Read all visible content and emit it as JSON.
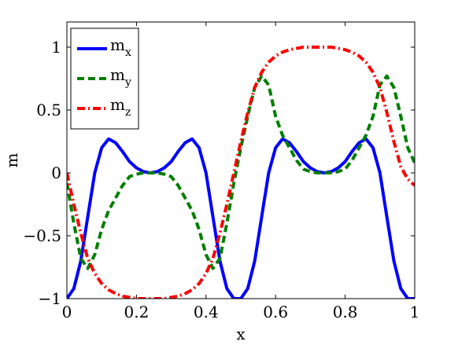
{
  "chart_data": {
    "type": "line",
    "title": "",
    "xlabel": "x",
    "ylabel": "m",
    "xlim": [
      0,
      1
    ],
    "ylim": [
      -1,
      1.2
    ],
    "xticks": [
      0,
      0.2,
      0.4,
      0.6,
      0.8,
      1
    ],
    "xtick_labels": [
      "0",
      "0.2",
      "0.4",
      "0.6",
      "0.8",
      "1"
    ],
    "yticks": [
      -1,
      -0.5,
      0,
      0.5,
      1
    ],
    "ytick_labels": [
      "−1",
      "−0.5",
      "0",
      "0.5",
      "1"
    ],
    "grid": false,
    "legend_position": "top-left",
    "x": [
      0,
      0.02,
      0.04,
      0.06,
      0.08,
      0.1,
      0.12,
      0.14,
      0.16,
      0.18,
      0.2,
      0.22,
      0.24,
      0.26,
      0.28,
      0.3,
      0.32,
      0.34,
      0.36,
      0.38,
      0.4,
      0.42,
      0.44,
      0.46,
      0.48,
      0.5,
      0.52,
      0.54,
      0.56,
      0.58,
      0.6,
      0.62,
      0.64,
      0.66,
      0.68,
      0.7,
      0.72,
      0.74,
      0.76,
      0.78,
      0.8,
      0.82,
      0.84,
      0.86,
      0.88,
      0.9,
      0.92,
      0.94,
      0.96,
      0.98,
      1
    ],
    "series": [
      {
        "name": "m",
        "subscript": "x",
        "color": "#0000ff",
        "dash": "solid",
        "values": [
          -1,
          -0.92,
          -0.7,
          -0.35,
          0.0,
          0.2,
          0.27,
          0.24,
          0.17,
          0.09,
          0.04,
          0.01,
          0,
          0.01,
          0.04,
          0.09,
          0.17,
          0.24,
          0.27,
          0.2,
          0.0,
          -0.35,
          -0.7,
          -0.92,
          -1,
          -1,
          -0.92,
          -0.7,
          -0.35,
          0.0,
          0.2,
          0.27,
          0.24,
          0.17,
          0.09,
          0.04,
          0.01,
          0,
          0.01,
          0.04,
          0.09,
          0.17,
          0.24,
          0.27,
          0.2,
          0.0,
          -0.35,
          -0.7,
          -0.92,
          -1,
          -1
        ]
      },
      {
        "name": "m",
        "subscript": "y",
        "color": "#007f00",
        "dash": "dashed",
        "values": [
          -0.08,
          -0.4,
          -0.68,
          -0.76,
          -0.65,
          -0.45,
          -0.3,
          -0.2,
          -0.1,
          -0.03,
          -0.01,
          0.0,
          0.0,
          0.0,
          -0.01,
          -0.03,
          -0.1,
          -0.2,
          -0.3,
          -0.45,
          -0.65,
          -0.76,
          -0.68,
          -0.4,
          -0.08,
          0.2,
          0.45,
          0.68,
          0.77,
          0.7,
          0.45,
          0.3,
          0.2,
          0.1,
          0.03,
          0.01,
          0.0,
          0.0,
          0.0,
          0.01,
          0.03,
          0.1,
          0.2,
          0.3,
          0.45,
          0.7,
          0.77,
          0.68,
          0.45,
          0.2,
          0.08
        ]
      },
      {
        "name": "m",
        "subscript": "z",
        "color": "#ff0000",
        "dash": "dashdot",
        "values": [
          0,
          -0.25,
          -0.48,
          -0.68,
          -0.8,
          -0.88,
          -0.93,
          -0.96,
          -0.98,
          -0.99,
          -1,
          -1,
          -1,
          -1,
          -1,
          -0.99,
          -0.98,
          -0.96,
          -0.93,
          -0.88,
          -0.8,
          -0.68,
          -0.48,
          -0.25,
          0,
          0.25,
          0.48,
          0.68,
          0.8,
          0.88,
          0.93,
          0.96,
          0.98,
          0.99,
          1,
          1,
          1,
          1,
          1,
          0.99,
          0.98,
          0.96,
          0.93,
          0.88,
          0.8,
          0.68,
          0.48,
          0.25,
          0.05,
          -0.05,
          -0.1
        ]
      }
    ]
  }
}
